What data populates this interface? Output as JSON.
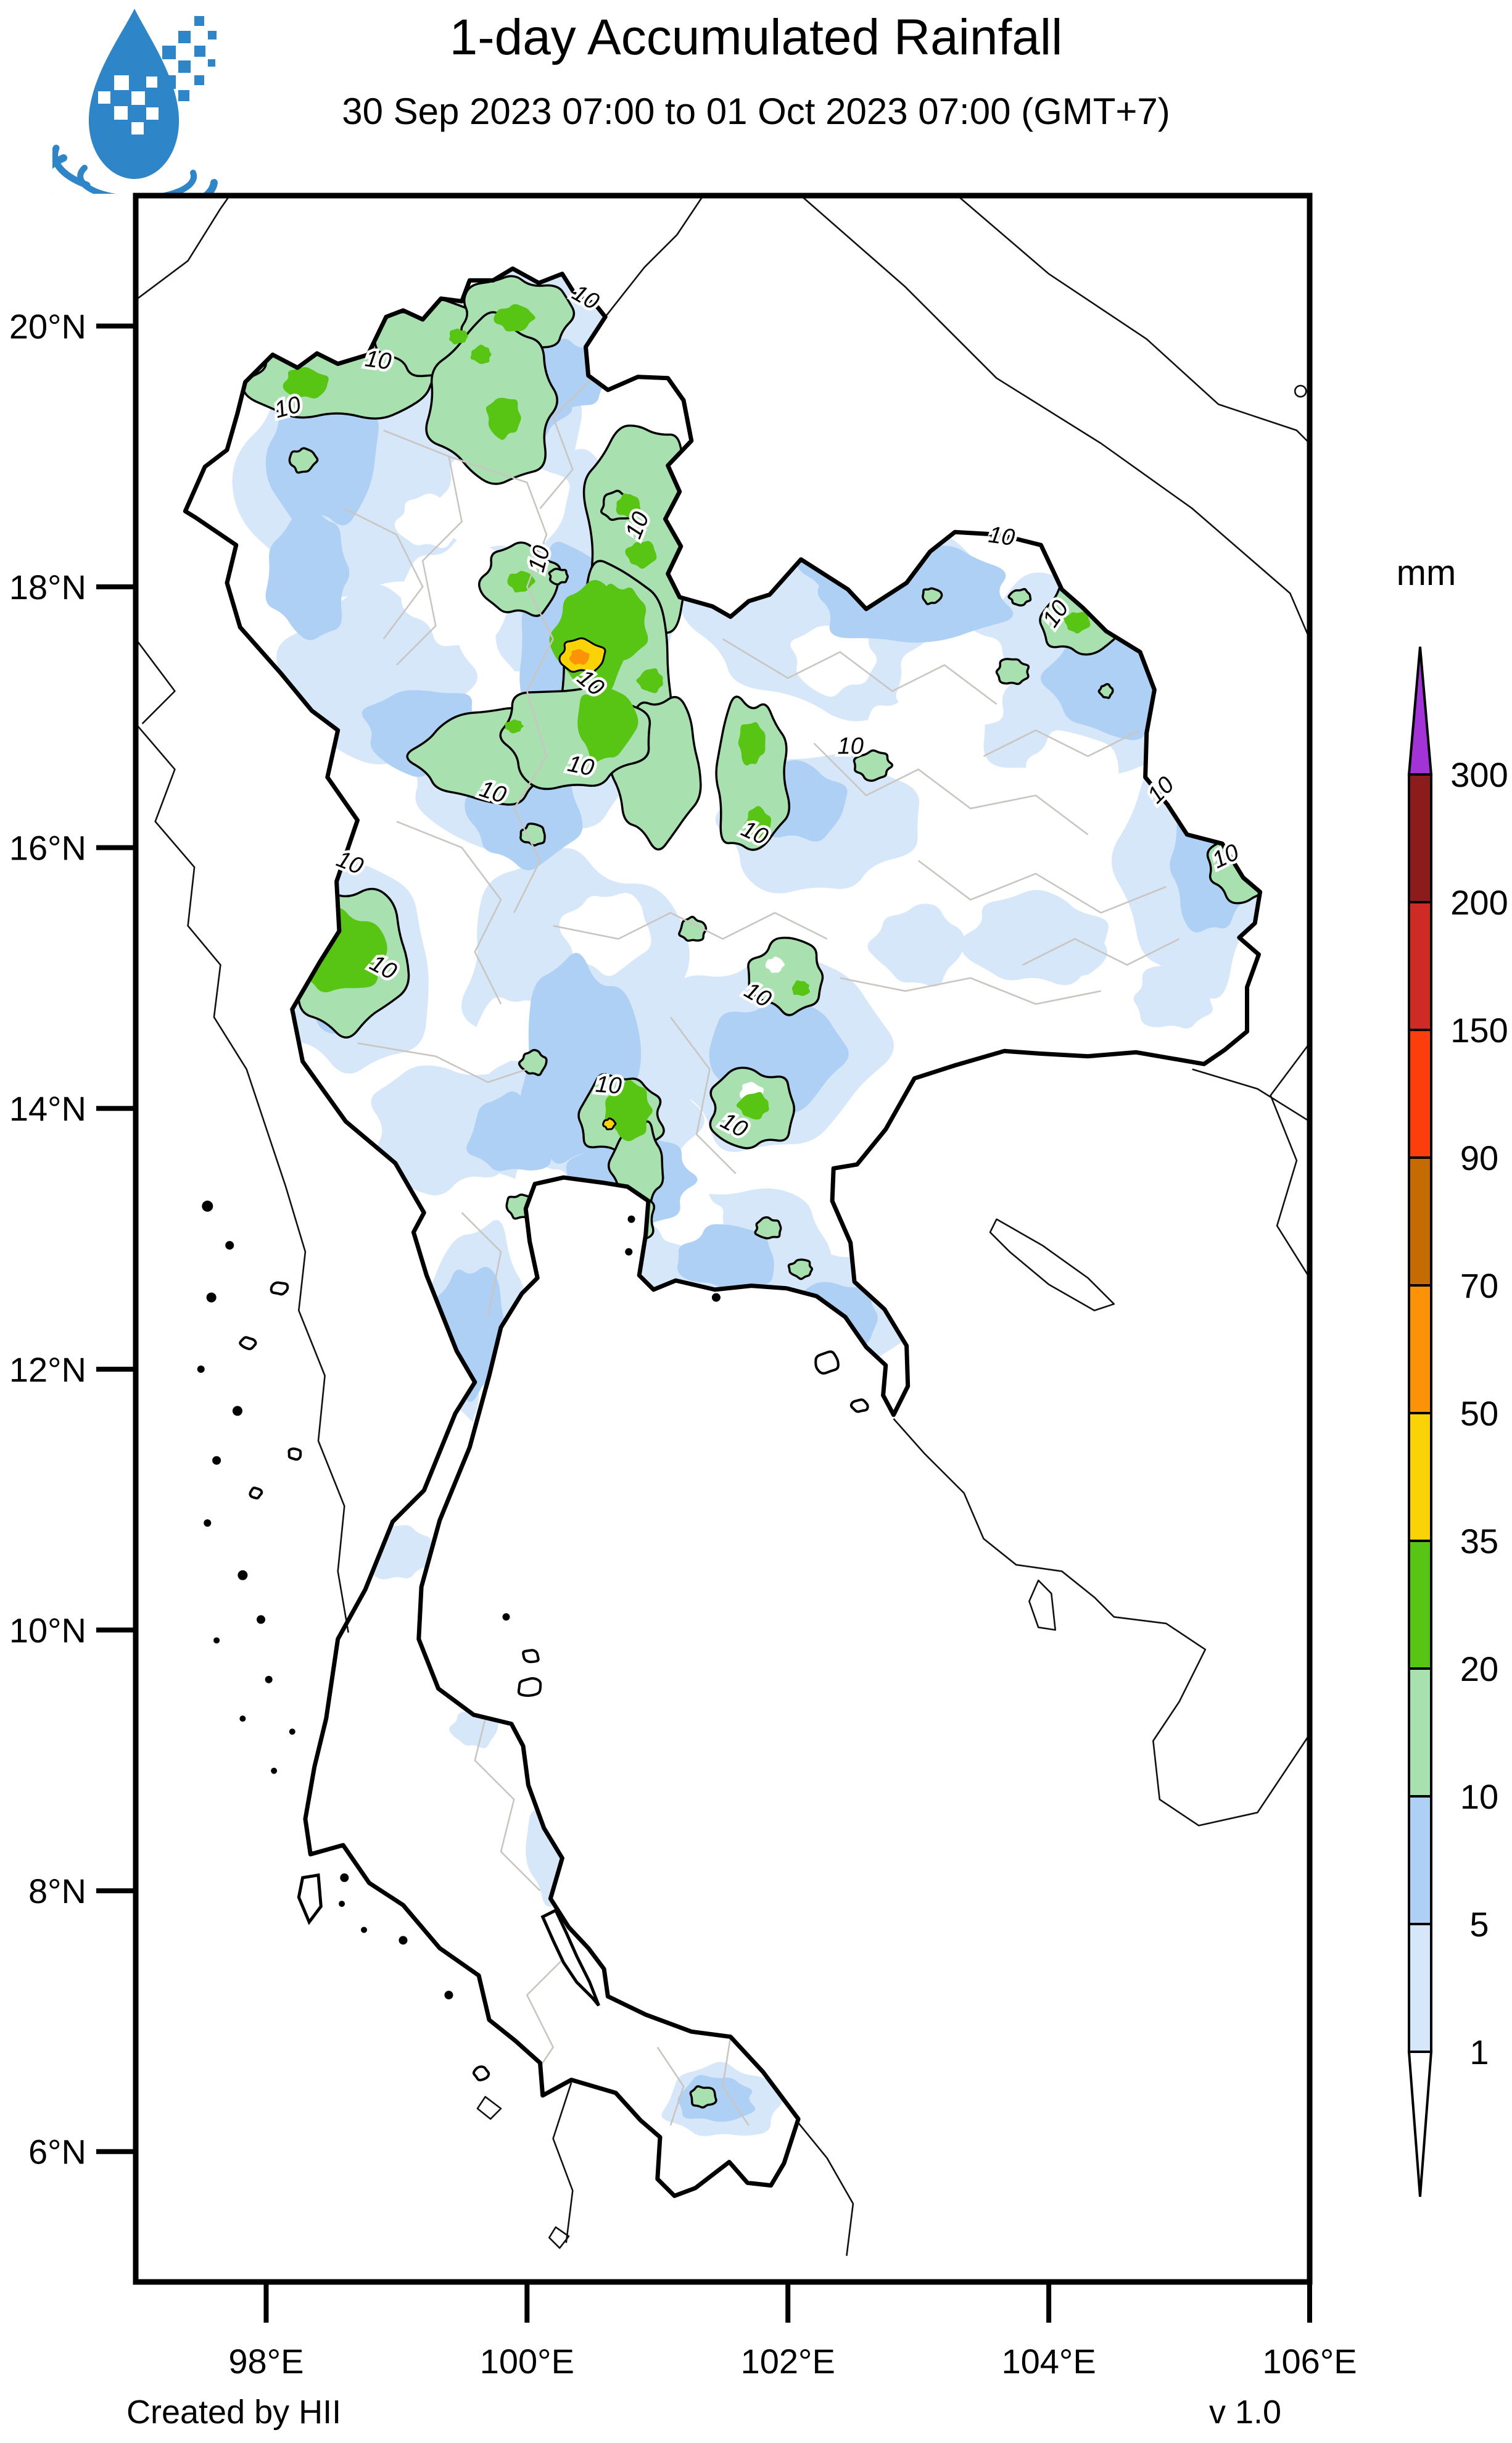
{
  "header": {
    "title": "1-day Accumulated Rainfall",
    "subtitle": "30 Sep 2023 07:00 to 01 Oct 2023 07:00 (GMT+7)"
  },
  "legend": {
    "title": "mm",
    "unit_labels": [
      "300",
      "200",
      "150",
      "90",
      "70",
      "50",
      "35",
      "20",
      "10",
      "5",
      "1"
    ],
    "cells": [
      {
        "range": ">300",
        "color": "#A233D6"
      },
      {
        "range": "200-300",
        "color": "#8C1C1C"
      },
      {
        "range": "150-200",
        "color": "#CF2B26"
      },
      {
        "range": "90-150",
        "color": "#FB3E0B"
      },
      {
        "range": "70-90",
        "color": "#C66B03"
      },
      {
        "range": "50-70",
        "color": "#FB9207"
      },
      {
        "range": "35-50",
        "color": "#F9D305"
      },
      {
        "range": "20-35",
        "color": "#58C413"
      },
      {
        "range": "10-20",
        "color": "#A8E0AF"
      },
      {
        "range": "5-10",
        "color": "#AFD0F5"
      },
      {
        "range": "1-5",
        "color": "#D7E7FA"
      },
      {
        "range": "<1",
        "color": "#FFFFFF"
      }
    ]
  },
  "axes": {
    "lat_labels": [
      "20°N",
      "18°N",
      "16°N",
      "14°N",
      "12°N",
      "10°N",
      "8°N",
      "6°N"
    ],
    "lat_values": [
      20,
      18,
      16,
      14,
      12,
      10,
      8,
      6
    ],
    "lon_labels": [
      "98°E",
      "100°E",
      "102°E",
      "104°E",
      "106°E"
    ],
    "lon_values": [
      98,
      100,
      102,
      104,
      106
    ]
  },
  "map": {
    "contour_label": "10",
    "border_color": "#000000",
    "province_line_color": "#C9C5C1",
    "logo_color": "#2E86C8"
  },
  "footer": {
    "credit": "Created by HII",
    "version": "v 1.0"
  }
}
